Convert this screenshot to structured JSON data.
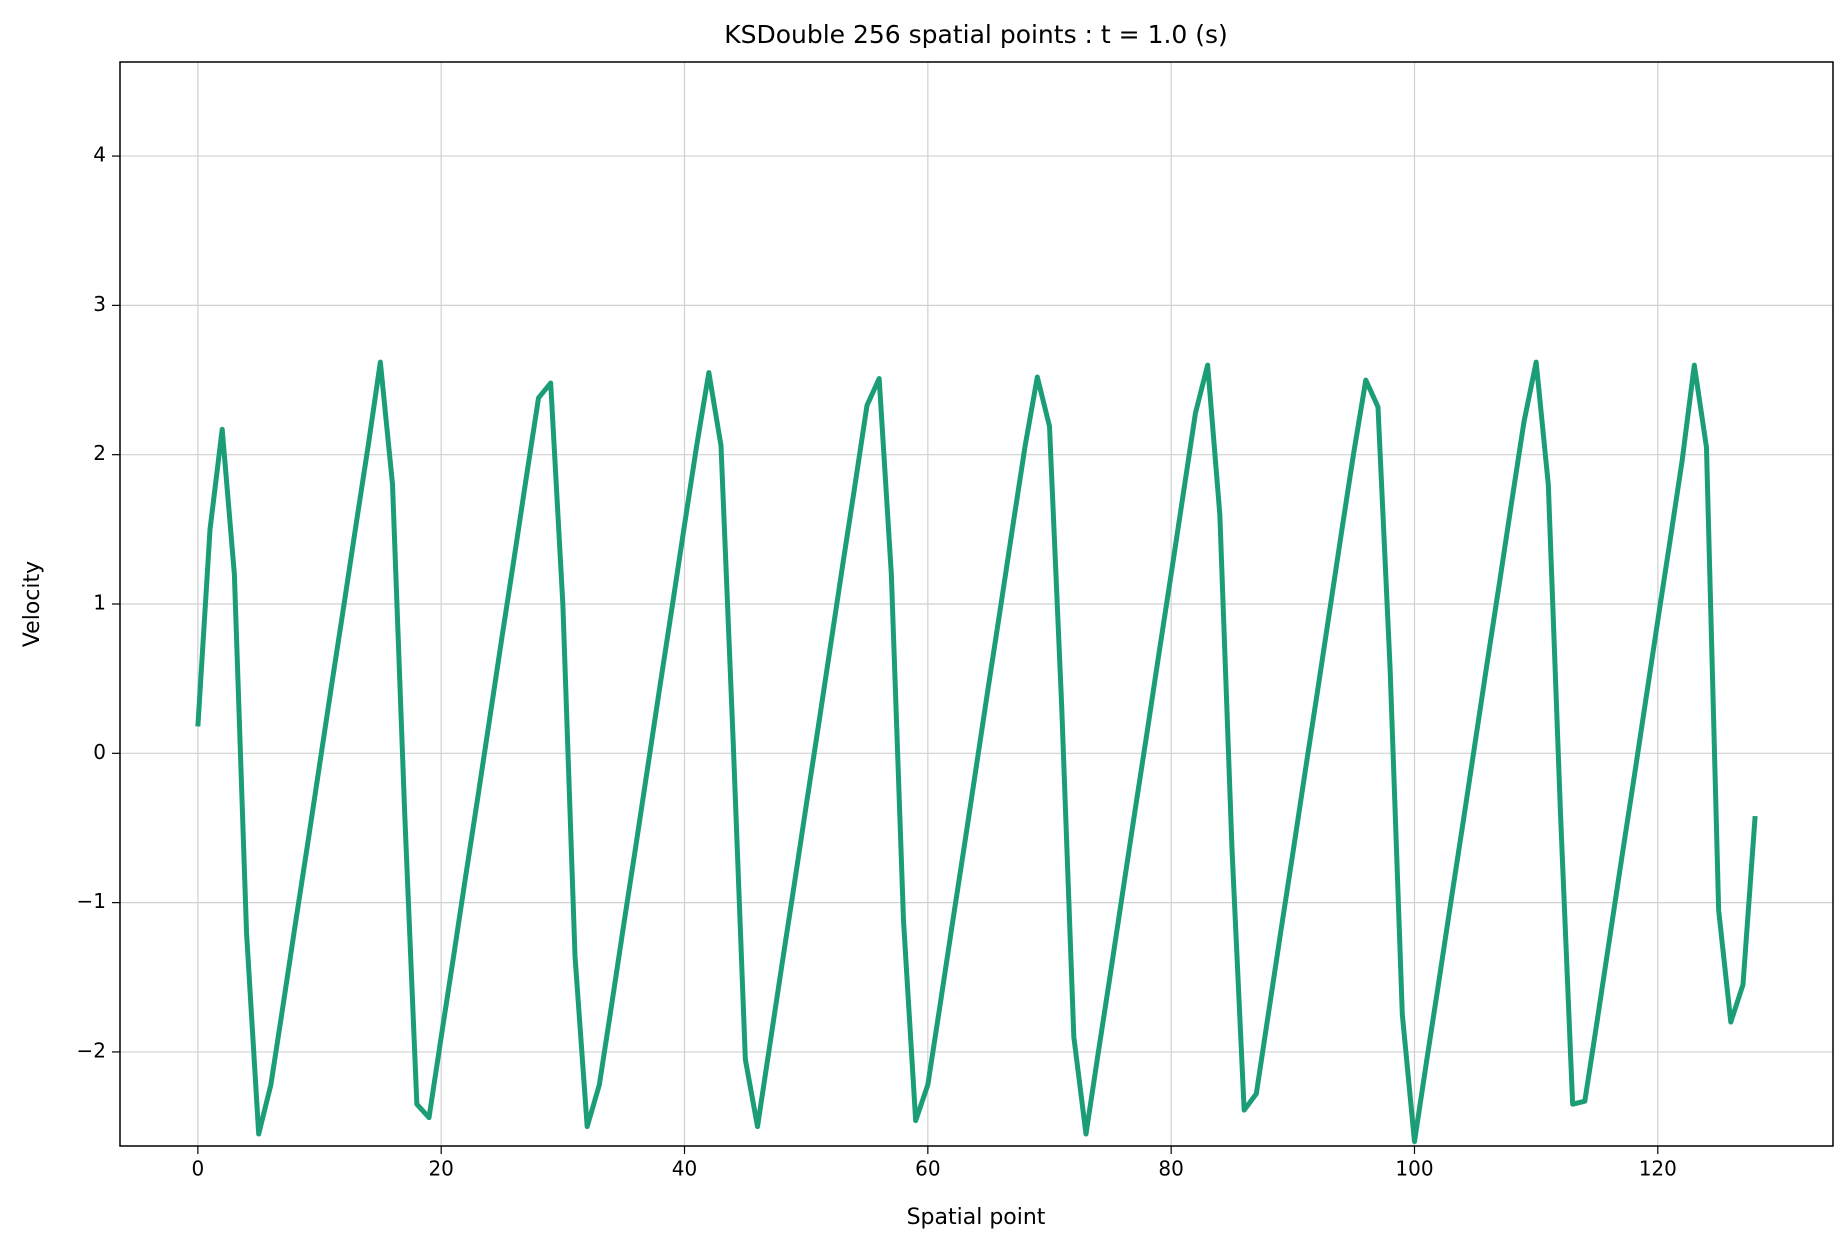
{
  "chart_data": {
    "type": "line",
    "title": "KSDouble 256 spatial points : t = 1.0 (s)",
    "xlabel": "Spatial point",
    "ylabel": "Velocity",
    "color": "#1b9e77",
    "grid": true,
    "xlim": [
      -6.4,
      134.4
    ],
    "ylim": [
      -2.63,
      4.63
    ],
    "xticks": [
      0,
      20,
      40,
      60,
      80,
      100,
      120
    ],
    "yticks": [
      {
        "value": -2,
        "label": "−2"
      },
      {
        "value": -1,
        "label": "−1"
      },
      0,
      1,
      2,
      3,
      4
    ],
    "x": [
      0,
      1,
      2,
      3,
      4,
      5,
      6,
      7,
      8,
      9,
      10,
      11,
      12,
      13,
      14,
      15,
      16,
      17,
      18,
      19,
      20,
      21,
      22,
      23,
      24,
      25,
      26,
      27,
      28,
      29,
      30,
      31,
      32,
      33,
      34,
      35,
      36,
      37,
      38,
      39,
      40,
      41,
      42,
      43,
      44,
      45,
      46,
      47,
      48,
      49,
      50,
      51,
      52,
      53,
      54,
      55,
      56,
      57,
      58,
      59,
      60,
      61,
      62,
      63,
      64,
      65,
      66,
      67,
      68,
      69,
      70,
      71,
      72,
      73,
      74,
      75,
      76,
      77,
      78,
      79,
      80,
      81,
      82,
      83,
      84,
      85,
      86,
      87,
      88,
      89,
      90,
      91,
      92,
      93,
      94,
      95,
      96,
      97,
      98,
      99,
      100,
      101,
      102,
      103,
      104,
      105,
      106,
      107,
      108,
      109,
      110,
      111,
      112,
      113,
      114,
      115,
      116,
      117,
      118,
      119,
      120,
      121,
      122,
      123,
      124,
      125,
      126,
      127,
      128
    ],
    "values": [
      0.18,
      1.5,
      2.17,
      1.2,
      -1.2,
      -2.55,
      -2.22,
      -1.69,
      -1.15,
      -0.62,
      -0.08,
      0.46,
      0.99,
      1.53,
      2.06,
      2.62,
      1.8,
      -0.4,
      -2.35,
      -2.44,
      -1.9,
      -1.37,
      -0.83,
      -0.3,
      0.24,
      0.78,
      1.31,
      1.85,
      2.38,
      2.48,
      1.0,
      -1.36,
      -2.5,
      -2.22,
      -1.69,
      -1.15,
      -0.62,
      -0.08,
      0.46,
      0.99,
      1.53,
      2.06,
      2.55,
      2.06,
      0.08,
      -2.05,
      -2.5,
      -1.96,
      -1.42,
      -0.89,
      -0.35,
      0.18,
      0.72,
      1.26,
      1.79,
      2.33,
      2.51,
      1.2,
      -1.12,
      -2.46,
      -2.22,
      -1.69,
      -1.15,
      -0.62,
      -0.08,
      0.46,
      0.99,
      1.53,
      2.06,
      2.52,
      2.19,
      0.32,
      -1.9,
      -2.55,
      -2.01,
      -1.48,
      -0.94,
      -0.4,
      0.13,
      0.67,
      1.2,
      1.74,
      2.28,
      2.6,
      1.6,
      -0.64,
      -2.39,
      -2.28,
      -1.74,
      -1.2,
      -0.67,
      -0.13,
      0.4,
      0.94,
      1.48,
      2.01,
      2.5,
      2.32,
      0.56,
      -1.75,
      -2.6,
      -2.06,
      -1.53,
      -0.99,
      -0.46,
      0.08,
      0.62,
      1.15,
      1.69,
      2.22,
      2.62,
      1.8,
      -0.4,
      -2.35,
      -2.33,
      -1.8,
      -1.26,
      -0.72,
      -0.19,
      0.35,
      0.89,
      1.42,
      1.96,
      2.6,
      2.05,
      -1.05,
      -1.8,
      -1.55,
      -0.42
    ]
  }
}
